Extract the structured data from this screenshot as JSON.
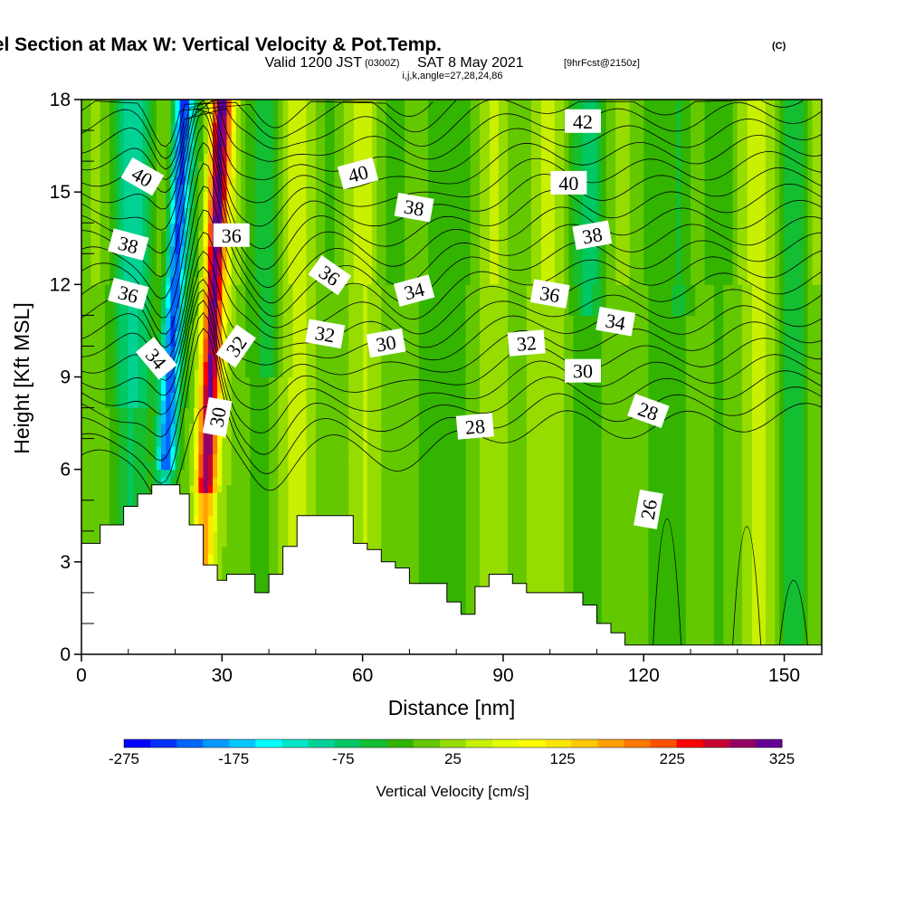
{
  "header": {
    "title_main": "Wind-Parallel Section at Max W: Vertical Velocity & Pot.Temp.",
    "title_suffix": "(C)",
    "subtitle_a": "Valid 1200 JST",
    "subtitle_b": "(0300Z)",
    "subtitle_c": "SAT 8 May 2021",
    "subtitle_d": "[9hrFcst@2150z]",
    "params": "i,j,k,angle=27,28,24,86"
  },
  "chart_data": {
    "type": "heatmap",
    "title": "Wind-Parallel Section at Max W: Vertical Velocity & Pot.Temp. (C)",
    "xlabel": "Distance [nm]",
    "ylabel": "Height [Kft MSL]",
    "xlim": [
      0,
      158
    ],
    "ylim": [
      0,
      18
    ],
    "xticks": [
      0,
      30,
      60,
      90,
      120,
      150
    ],
    "yticks": [
      0,
      3,
      6,
      9,
      12,
      15,
      18
    ],
    "grid": false,
    "colorbar": {
      "label": "Vertical Velocity [cm/s]",
      "tick_values": [
        -275,
        -175,
        -75,
        25,
        125,
        225,
        325
      ],
      "range": [
        -275,
        325
      ],
      "step": 25,
      "colors": [
        "#0000ff",
        "#0033ff",
        "#0066ff",
        "#0099ff",
        "#00c8ff",
        "#00ffff",
        "#00e6c8",
        "#00d296",
        "#00c864",
        "#14be32",
        "#32b400",
        "#64c800",
        "#96dc00",
        "#c8f000",
        "#e6ff00",
        "#ffff00",
        "#ffe600",
        "#ffc800",
        "#ffa000",
        "#ff7800",
        "#ff5000",
        "#ff0000",
        "#c80032",
        "#960064",
        "#640096"
      ]
    },
    "terrain_kft": [
      [
        0,
        3.6
      ],
      [
        4,
        3.6
      ],
      [
        4,
        4.2
      ],
      [
        9,
        4.2
      ],
      [
        9,
        4.8
      ],
      [
        12,
        4.8
      ],
      [
        12,
        5.2
      ],
      [
        15,
        5.2
      ],
      [
        15,
        5.5
      ],
      [
        21,
        5.5
      ],
      [
        21,
        5.2
      ],
      [
        23,
        5.2
      ],
      [
        23,
        4.2
      ],
      [
        26,
        4.2
      ],
      [
        26,
        2.9
      ],
      [
        29,
        2.9
      ],
      [
        29,
        2.4
      ],
      [
        31,
        2.4
      ],
      [
        31,
        2.6
      ],
      [
        37,
        2.6
      ],
      [
        37,
        2.0
      ],
      [
        40,
        2.0
      ],
      [
        40,
        2.6
      ],
      [
        43,
        2.6
      ],
      [
        43,
        3.5
      ],
      [
        46,
        3.5
      ],
      [
        46,
        4.5
      ],
      [
        52,
        4.5
      ],
      [
        52,
        4.5
      ],
      [
        58,
        4.5
      ],
      [
        58,
        3.6
      ],
      [
        61,
        3.6
      ],
      [
        61,
        3.4
      ],
      [
        64,
        3.4
      ],
      [
        64,
        3.0
      ],
      [
        67,
        3.0
      ],
      [
        67,
        2.8
      ],
      [
        70,
        2.8
      ],
      [
        70,
        2.3
      ],
      [
        78,
        2.3
      ],
      [
        78,
        1.7
      ],
      [
        81,
        1.7
      ],
      [
        81,
        1.3
      ],
      [
        84,
        1.3
      ],
      [
        84,
        2.2
      ],
      [
        87,
        2.2
      ],
      [
        87,
        2.6
      ],
      [
        92,
        2.6
      ],
      [
        92,
        2.3
      ],
      [
        95,
        2.3
      ],
      [
        95,
        2.0
      ],
      [
        107,
        2.0
      ],
      [
        107,
        1.6
      ],
      [
        110,
        1.6
      ],
      [
        110,
        1.0
      ],
      [
        113,
        1.0
      ],
      [
        113,
        0.7
      ],
      [
        116,
        0.7
      ],
      [
        116,
        0.3
      ],
      [
        158,
        0.3
      ]
    ],
    "theta_contour_values": [
      26,
      28,
      30,
      32,
      34,
      36,
      38,
      40,
      42
    ],
    "contour_labels": [
      {
        "text": "40",
        "x": 13,
        "y": 15.5,
        "angle": 30
      },
      {
        "text": "38",
        "x": 10,
        "y": 13.3,
        "angle": 15
      },
      {
        "text": "36",
        "x": 10,
        "y": 11.7,
        "angle": 15
      },
      {
        "text": "34",
        "x": 16,
        "y": 9.6,
        "angle": 50
      },
      {
        "text": "36",
        "x": 32,
        "y": 13.6,
        "angle": 0
      },
      {
        "text": "32",
        "x": 33,
        "y": 10.0,
        "angle": -55
      },
      {
        "text": "30",
        "x": 29,
        "y": 7.7,
        "angle": -80
      },
      {
        "text": "40",
        "x": 59,
        "y": 15.6,
        "angle": -15
      },
      {
        "text": "38",
        "x": 71,
        "y": 14.5,
        "angle": 10
      },
      {
        "text": "36",
        "x": 53,
        "y": 12.3,
        "angle": 35
      },
      {
        "text": "34",
        "x": 71,
        "y": 11.8,
        "angle": -15
      },
      {
        "text": "32",
        "x": 52,
        "y": 10.4,
        "angle": 10
      },
      {
        "text": "30",
        "x": 65,
        "y": 10.1,
        "angle": -10
      },
      {
        "text": "28",
        "x": 84,
        "y": 7.4,
        "angle": -5
      },
      {
        "text": "42",
        "x": 107,
        "y": 17.3,
        "angle": 0
      },
      {
        "text": "40",
        "x": 104,
        "y": 15.3,
        "angle": 0
      },
      {
        "text": "38",
        "x": 109,
        "y": 13.6,
        "angle": -10
      },
      {
        "text": "36",
        "x": 100,
        "y": 11.7,
        "angle": 10
      },
      {
        "text": "34",
        "x": 114,
        "y": 10.8,
        "angle": 10
      },
      {
        "text": "32",
        "x": 95,
        "y": 10.1,
        "angle": -5
      },
      {
        "text": "30",
        "x": 107,
        "y": 9.2,
        "angle": 0
      },
      {
        "text": "28",
        "x": 121,
        "y": 7.9,
        "angle": 20
      },
      {
        "text": "26",
        "x": 121,
        "y": 4.7,
        "angle": -80
      }
    ]
  }
}
